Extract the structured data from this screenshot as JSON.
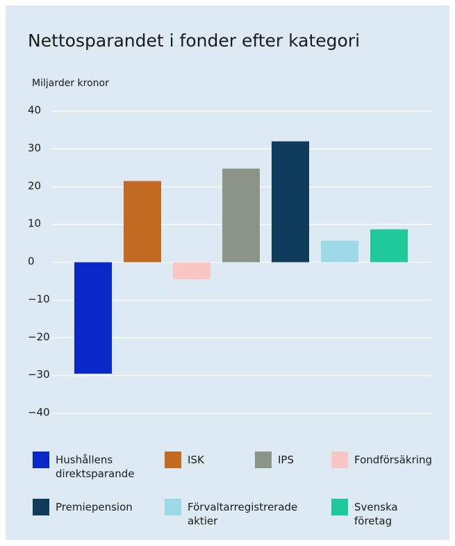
{
  "chart_data": {
    "type": "bar",
    "title": "Nettosparandet i fonder efter kategori",
    "y_label": "Miljarder kronor",
    "ylim": [
      -40,
      40
    ],
    "yticks": [
      {
        "value": -40,
        "label": "−40"
      },
      {
        "value": -30,
        "label": "−30"
      },
      {
        "value": -20,
        "label": "−20"
      },
      {
        "value": -10,
        "label": "−10"
      },
      0,
      10,
      20,
      30,
      40
    ],
    "grid": true,
    "series": [
      {
        "name": "Hushållens direktsparande",
        "color": "#0a28c8",
        "values": [
          -29.5
        ]
      },
      {
        "name": "ISK",
        "color": "#c26a22",
        "values": [
          21.5
        ]
      },
      {
        "name": "Fondförsäkring",
        "color": "#fac8c4",
        "values": [
          -4.5
        ]
      },
      {
        "name": "IPS",
        "color": "#8c9488",
        "values": [
          24.8
        ]
      },
      {
        "name": "Premiepension",
        "color": "#0e3a5c",
        "values": [
          32
        ]
      },
      {
        "name": "Förvaltarregistrerade aktier",
        "color": "#9dd9e6",
        "values": [
          5.7
        ]
      },
      {
        "name": "Svenska företag",
        "color": "#1ec89b",
        "values": [
          8.7
        ]
      }
    ]
  }
}
